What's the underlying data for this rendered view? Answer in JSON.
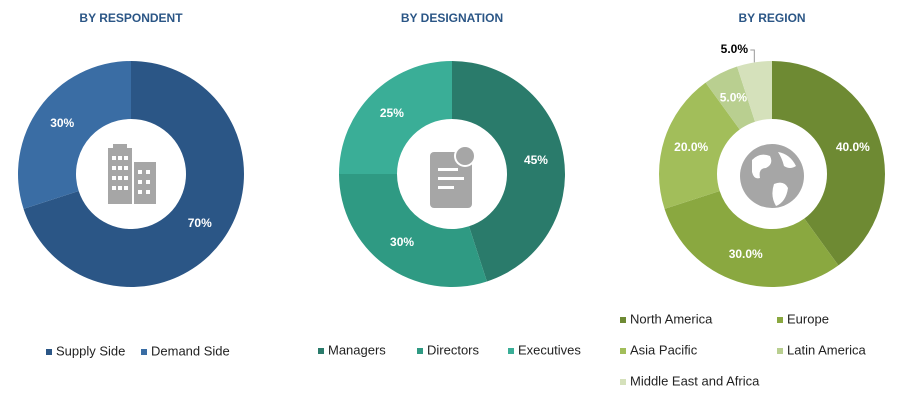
{
  "chart_data": [
    {
      "type": "pie",
      "title": "BY RESPONDENT",
      "categories": [
        "Supply Side",
        "Demand Side"
      ],
      "values": [
        70,
        30
      ],
      "value_labels": [
        "70%",
        "30%"
      ],
      "colors": [
        "#2b5686",
        "#3a6da4"
      ]
    },
    {
      "type": "pie",
      "title": "BY DESIGNATION",
      "categories": [
        "Managers",
        "Directors",
        "Executives"
      ],
      "values": [
        45,
        30,
        25
      ],
      "value_labels": [
        "45%",
        "30%",
        "25%"
      ],
      "colors": [
        "#2a7b6b",
        "#2f9a83",
        "#3aae97"
      ]
    },
    {
      "type": "pie",
      "title": "BY REGION",
      "categories": [
        "North America",
        "Europe",
        "Asia Pacific",
        "Latin America",
        "Middle East and Africa"
      ],
      "values": [
        40,
        30,
        20,
        5,
        5
      ],
      "value_labels": [
        "40.0%",
        "30.0%",
        "20.0%",
        "5.0%",
        "5.0%"
      ],
      "colors": [
        "#6e8a33",
        "#8aa840",
        "#a2be5a",
        "#b9cf90",
        "#d5e1bb"
      ]
    }
  ]
}
